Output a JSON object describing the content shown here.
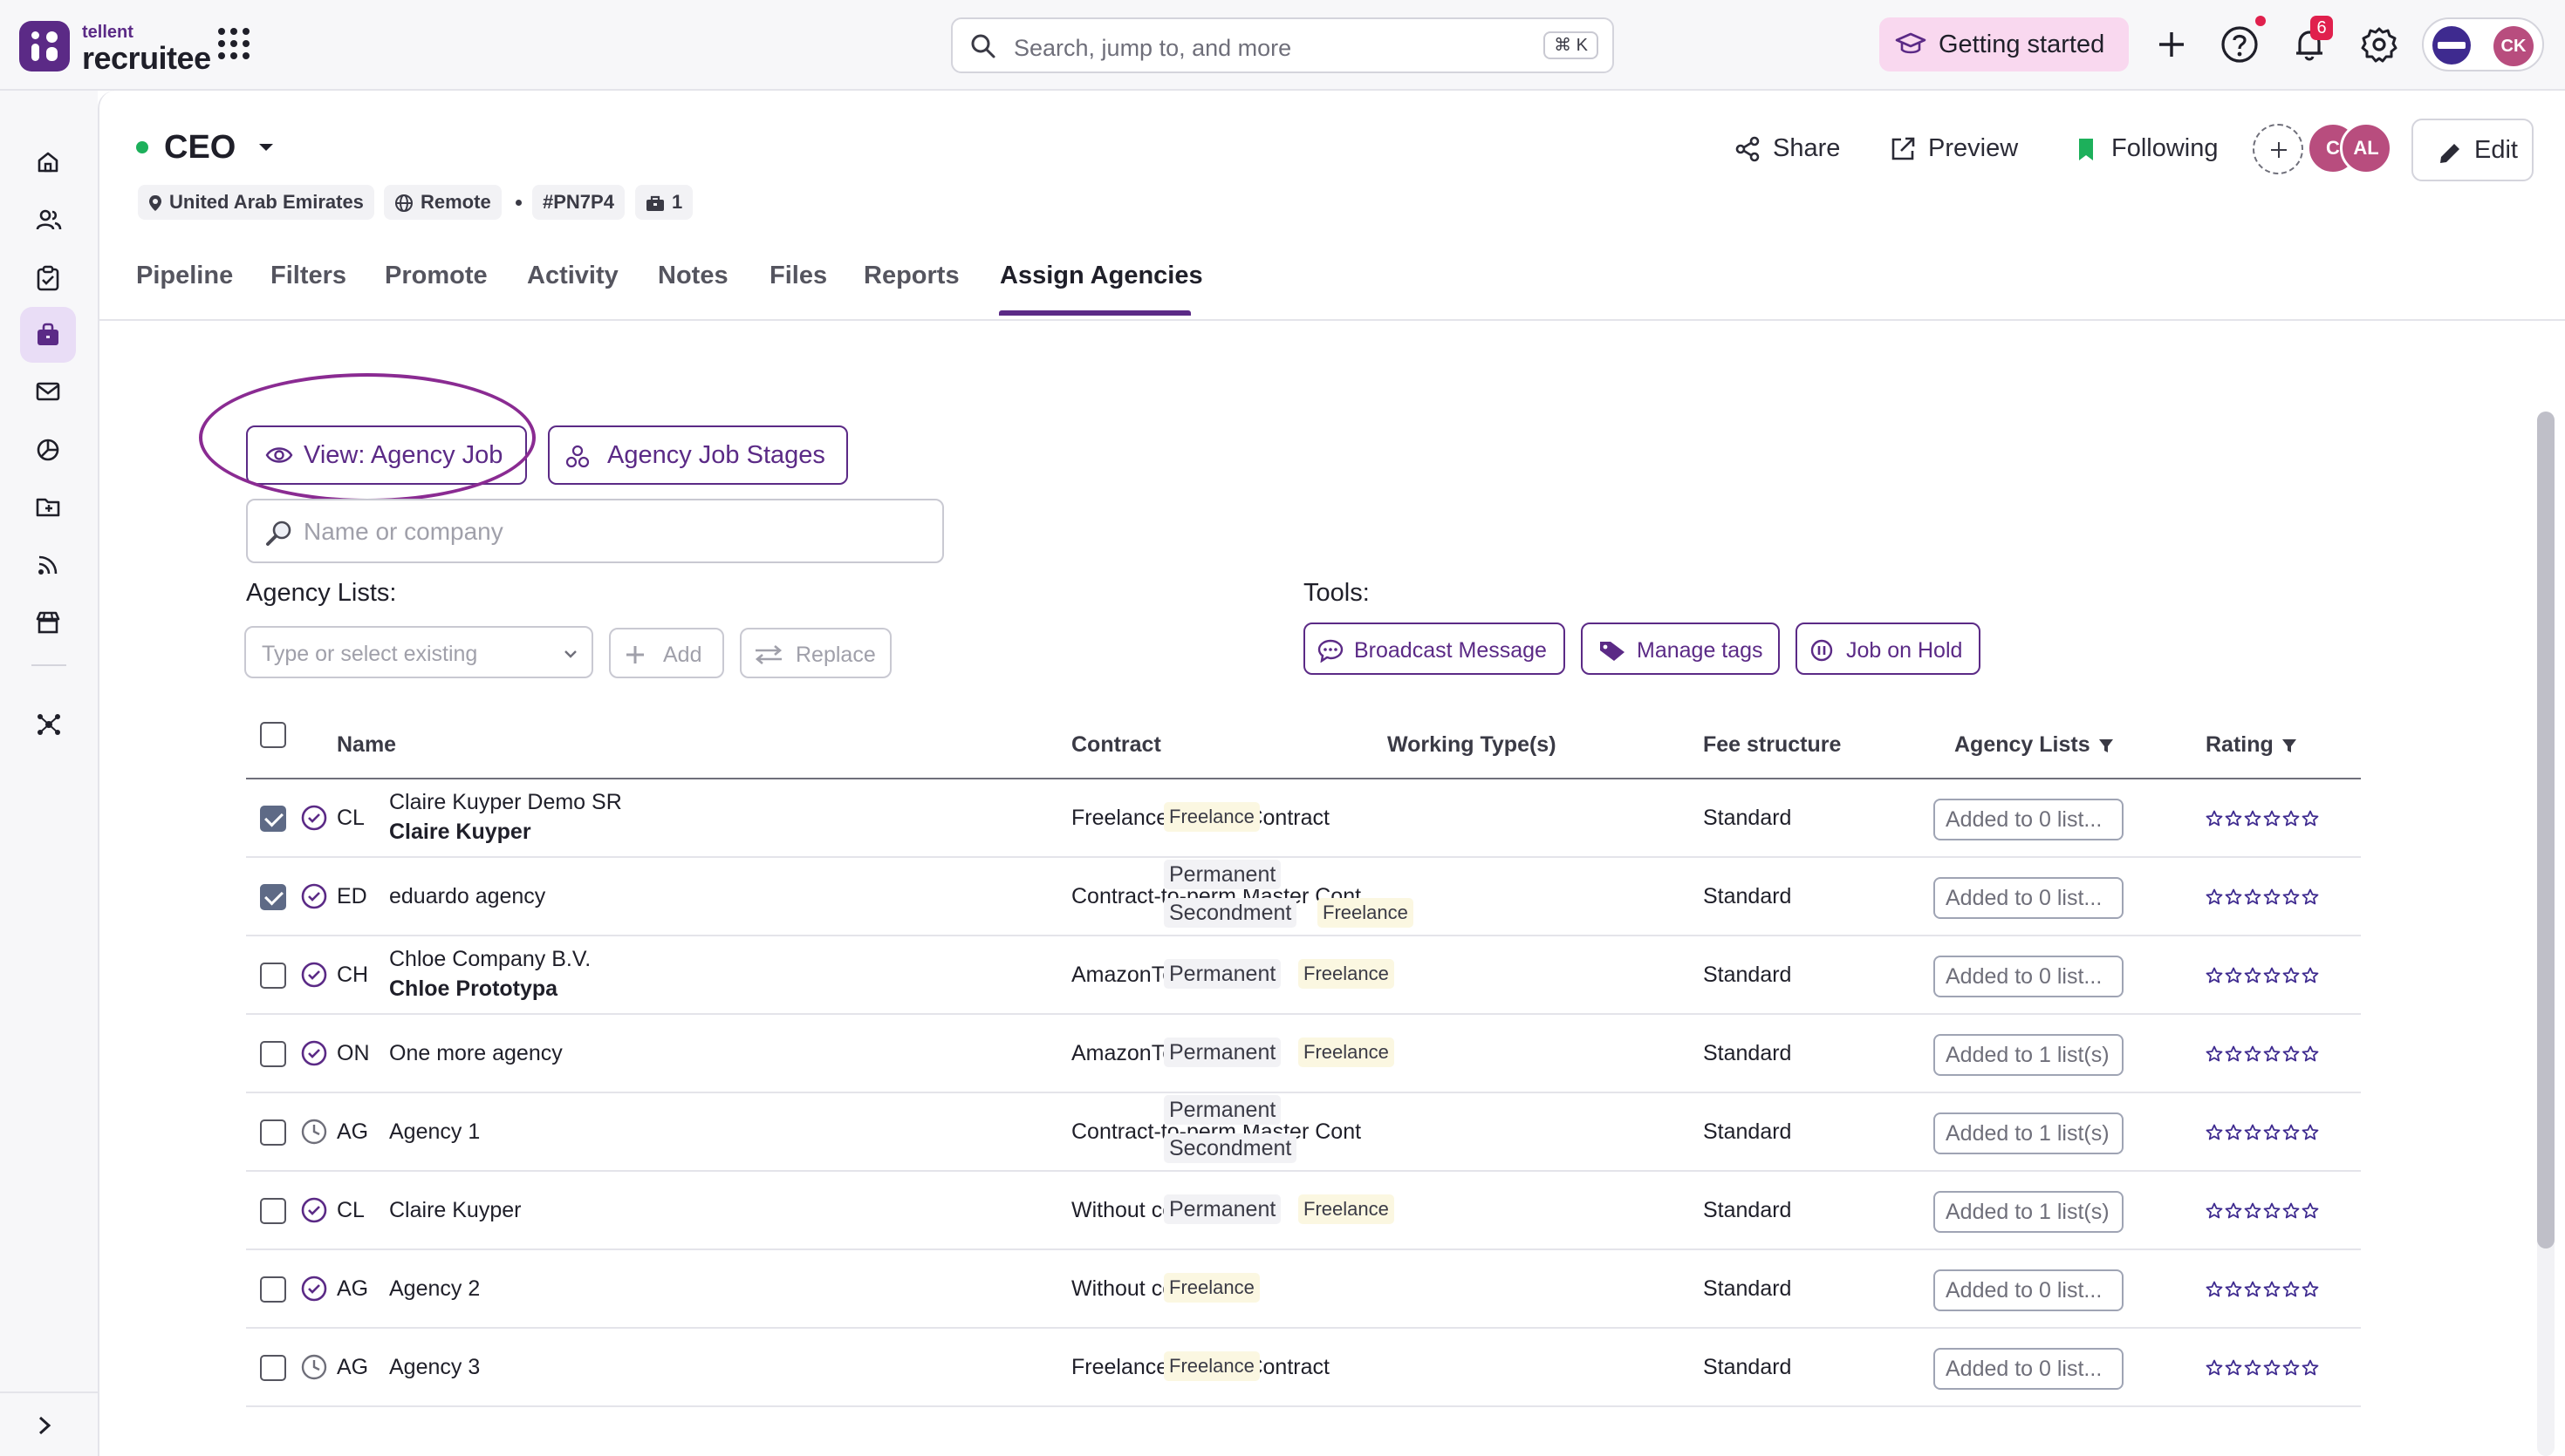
{
  "brand": {
    "small": "tellent",
    "name": "recruitee",
    "accent": "#5b2a86"
  },
  "search": {
    "placeholder": "Search, jump to, and more",
    "shortcut": "⌘ K"
  },
  "topbar": {
    "getting_started": "Getting started",
    "notification_count": "6",
    "user_initials": "CK"
  },
  "sidenav": {
    "items": [
      {
        "icon": "home-icon"
      },
      {
        "icon": "candidates-icon"
      },
      {
        "icon": "tasks-icon"
      },
      {
        "icon": "jobs-icon",
        "active": true
      },
      {
        "icon": "mail-icon"
      },
      {
        "icon": "reports-icon"
      },
      {
        "icon": "folder-icon"
      },
      {
        "icon": "feed-icon"
      },
      {
        "icon": "store-icon"
      },
      {
        "icon": "network-icon"
      }
    ]
  },
  "job": {
    "title": "CEO",
    "location": "United Arab Emirates",
    "remote": "Remote",
    "code": "#PN7P4",
    "openings": "1",
    "actions": {
      "share": "Share",
      "preview": "Preview",
      "following": "Following",
      "edit": "Edit"
    },
    "members": [
      "C",
      "AL"
    ]
  },
  "tabs": [
    "Pipeline",
    "Filters",
    "Promote",
    "Activity",
    "Notes",
    "Files",
    "Reports",
    "Assign Agencies"
  ],
  "active_tab": "Assign Agencies",
  "agencies": {
    "view_button": "View: Agency Job",
    "stages_button": "Agency Job Stages",
    "search_placeholder": "Name or company",
    "lists_label": "Agency Lists:",
    "lists_placeholder": "Type or select existing",
    "add_button": "Add",
    "replace_button": "Replace",
    "tools_label": "Tools:",
    "tools": {
      "broadcast": "Broadcast Message",
      "tags": "Manage tags",
      "hold": "Job on Hold"
    },
    "columns": {
      "name": "Name",
      "contract": "Contract",
      "working_types": "Working Type(s)",
      "fee": "Fee structure",
      "lists": "Agency Lists",
      "rating": "Rating"
    },
    "rows": [
      {
        "checked": true,
        "status": "check",
        "initials": "CL",
        "name": "Claire Kuyper Demo SR",
        "contact": "Claire Kuyper",
        "contract": "Freelance Master Contract",
        "types": [
          [
            "Freelance"
          ]
        ],
        "fee": "Standard",
        "lists": "Added to 0 list..."
      },
      {
        "checked": true,
        "status": "check",
        "initials": "ED",
        "name": "eduardo agency",
        "contact": "",
        "contract": "Contract-to-perm Master Cont",
        "types": [
          [
            "Permanent"
          ],
          [
            "Secondment",
            "Freelance"
          ]
        ],
        "fee": "Standard",
        "lists": "Added to 0 list..."
      },
      {
        "checked": false,
        "status": "check",
        "initials": "CH",
        "name": "Chloe Company B.V.",
        "contact": "Chloe Prototypa",
        "contract": "AmazonTerms",
        "types": [
          [
            "Permanent",
            "Freelance"
          ]
        ],
        "fee": "Standard",
        "lists": "Added to 0 list..."
      },
      {
        "checked": false,
        "status": "check",
        "initials": "ON",
        "name": "One more agency",
        "contact": "",
        "contract": "AmazonTerms",
        "types": [
          [
            "Permanent",
            "Freelance"
          ]
        ],
        "fee": "Standard",
        "lists": "Added to 1 list(s)"
      },
      {
        "checked": false,
        "status": "clock",
        "initials": "AG",
        "name": "Agency 1",
        "contact": "",
        "contract": "Contract-to-perm Master Cont",
        "types": [
          [
            "Permanent"
          ],
          [
            "Secondment"
          ]
        ],
        "fee": "Standard",
        "lists": "Added to 1 list(s)"
      },
      {
        "checked": false,
        "status": "check",
        "initials": "CL",
        "name": "Claire Kuyper",
        "contact": "",
        "contract": "Without contract",
        "types": [
          [
            "Permanent",
            "Freelance"
          ]
        ],
        "fee": "Standard",
        "lists": "Added to 1 list(s)"
      },
      {
        "checked": false,
        "status": "check",
        "initials": "AG",
        "name": "Agency 2",
        "contact": "",
        "contract": "Without contract",
        "types": [
          [
            "Freelance"
          ]
        ],
        "fee": "Standard",
        "lists": "Added to 0 list..."
      },
      {
        "checked": false,
        "status": "clock",
        "initials": "AG",
        "name": "Agency 3",
        "contact": "",
        "contract": "Freelance Master Contract",
        "types": [
          [
            "Freelance"
          ]
        ],
        "fee": "Standard",
        "lists": "Added to 0 list..."
      }
    ]
  }
}
